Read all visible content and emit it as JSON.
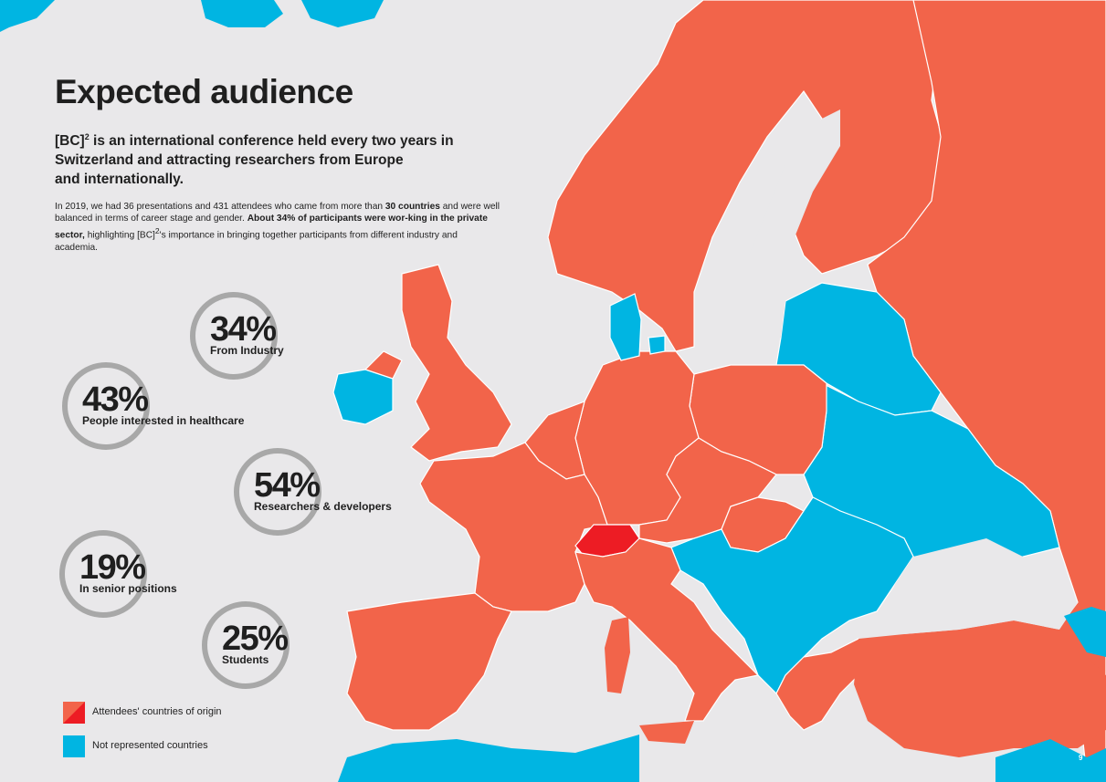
{
  "title": "Expected audience",
  "intro": {
    "line_1_prefix": "[BC]",
    "line_1_sup": "2",
    "line_1_rest": " is an international conference held every two years in",
    "line_2": "Switzerland and attracting researchers from Europe",
    "line_3": "and internationally."
  },
  "body": {
    "part_1": "In 2019, we had 36 presentations and 431 attendees who came from more than ",
    "part_2_bold": "30 countries",
    "part_3": " and were well balanced in terms of career stage and gender. ",
    "part_4_bold": "About 34% of participants were wor-king in the private sector,",
    "part_5": " highlighting [BC]",
    "part_5_sup": "2",
    "part_6": "'s importance in bringing together participants from different industry and academia."
  },
  "stats": [
    {
      "value": "34%",
      "label": "From Industry"
    },
    {
      "value": "43%",
      "label": "People interested in healthcare"
    },
    {
      "value": "54%",
      "label": "Researchers & developers"
    },
    {
      "value": "19%",
      "label": "In senior positions"
    },
    {
      "value": "25%",
      "label": "Students"
    }
  ],
  "legend": [
    {
      "label": "Attendees' countries of origin",
      "color": "#f2644a",
      "accent": "#ed1c24"
    },
    {
      "label": "Not represented countries",
      "color": "#00b5e2"
    }
  ],
  "colors": {
    "background": "#e9e8ea",
    "attendee_country": "#f2644a",
    "switzerland": "#ed1c24",
    "not_represented": "#00b5e2",
    "ring": "#a8a8a8",
    "text": "#1f1f1f"
  },
  "page_number": "9"
}
